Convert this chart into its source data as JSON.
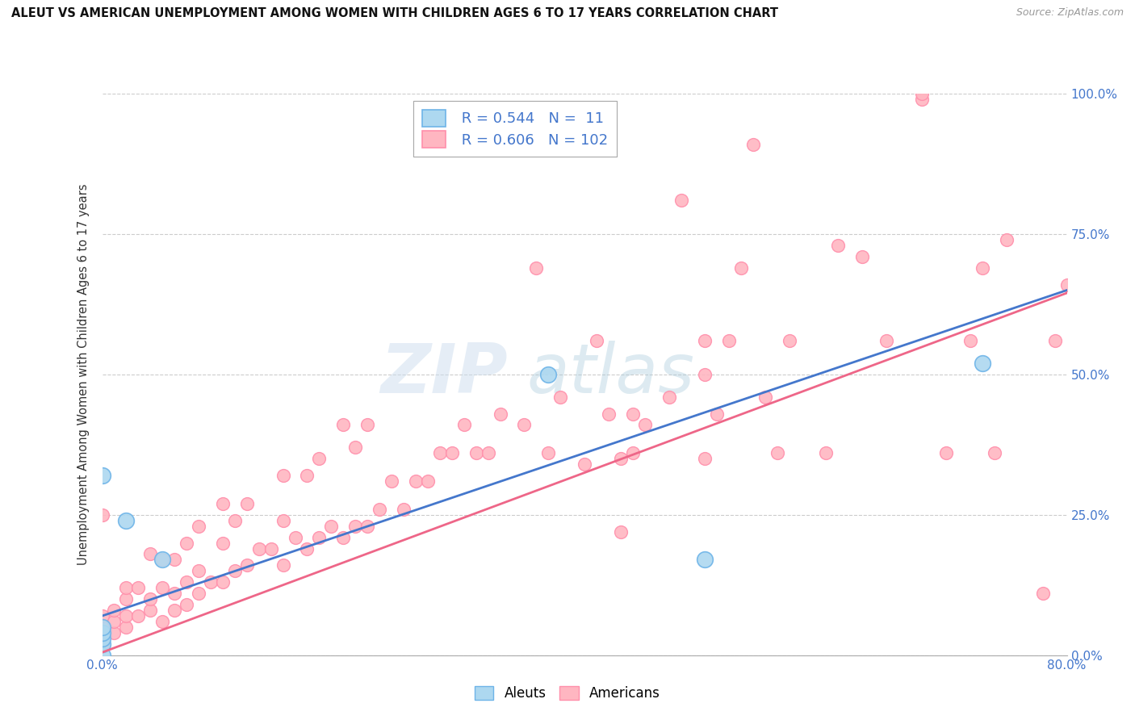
{
  "title": "ALEUT VS AMERICAN UNEMPLOYMENT AMONG WOMEN WITH CHILDREN AGES 6 TO 17 YEARS CORRELATION CHART",
  "source": "Source: ZipAtlas.com",
  "ylabel": "Unemployment Among Women with Children Ages 6 to 17 years",
  "xlim": [
    0,
    0.8
  ],
  "ylim": [
    0,
    1.0
  ],
  "xticks": [
    0.0,
    0.1,
    0.2,
    0.3,
    0.4,
    0.5,
    0.6,
    0.7,
    0.8
  ],
  "xticklabels": [
    "0.0%",
    "",
    "",
    "",
    "",
    "",
    "",
    "",
    "80.0%"
  ],
  "yticks": [
    0.0,
    0.25,
    0.5,
    0.75,
    1.0
  ],
  "yticklabels": [
    "0.0%",
    "25.0%",
    "50.0%",
    "75.0%",
    "100.0%"
  ],
  "aleut_fill_color": "#ADD8F0",
  "aleut_edge_color": "#6EB4E8",
  "american_fill_color": "#FFB6C1",
  "american_edge_color": "#FF8FAB",
  "aleut_line_color": "#4477CC",
  "american_line_color": "#EE6688",
  "aleut_R": 0.544,
  "aleut_N": 11,
  "american_R": 0.606,
  "american_N": 102,
  "watermark_zip": "ZIP",
  "watermark_atlas": "atlas",
  "background_color": "#FFFFFF",
  "grid_color": "#CCCCCC",
  "legend_label_aleuts": "Aleuts",
  "legend_label_americans": "Americans",
  "tick_color": "#4477CC",
  "aleut_line_y0": 0.07,
  "aleut_line_y1": 0.65,
  "american_line_y0": 0.005,
  "american_line_y1": 0.645,
  "aleuts_x": [
    0.0,
    0.0,
    0.0,
    0.0,
    0.0,
    0.0,
    0.02,
    0.05,
    0.37,
    0.5,
    0.73
  ],
  "aleuts_y": [
    0.0,
    0.02,
    0.03,
    0.04,
    0.05,
    0.32,
    0.24,
    0.17,
    0.5,
    0.17,
    0.52
  ],
  "americans_x": [
    0.0,
    0.0,
    0.0,
    0.0,
    0.01,
    0.01,
    0.01,
    0.02,
    0.02,
    0.02,
    0.02,
    0.03,
    0.03,
    0.04,
    0.04,
    0.04,
    0.05,
    0.05,
    0.05,
    0.06,
    0.06,
    0.06,
    0.07,
    0.07,
    0.07,
    0.08,
    0.08,
    0.08,
    0.09,
    0.1,
    0.1,
    0.1,
    0.11,
    0.11,
    0.12,
    0.12,
    0.13,
    0.14,
    0.15,
    0.15,
    0.15,
    0.16,
    0.17,
    0.17,
    0.18,
    0.18,
    0.19,
    0.2,
    0.2,
    0.21,
    0.21,
    0.22,
    0.22,
    0.23,
    0.24,
    0.25,
    0.26,
    0.27,
    0.28,
    0.29,
    0.3,
    0.31,
    0.32,
    0.33,
    0.35,
    0.36,
    0.37,
    0.38,
    0.4,
    0.41,
    0.42,
    0.44,
    0.44,
    0.45,
    0.47,
    0.48,
    0.5,
    0.51,
    0.52,
    0.53,
    0.54,
    0.55,
    0.56,
    0.57,
    0.6,
    0.61,
    0.63,
    0.65,
    0.68,
    0.68,
    0.7,
    0.72,
    0.73,
    0.74,
    0.75,
    0.78,
    0.79,
    0.8,
    0.5,
    0.5,
    0.43,
    0.43
  ],
  "americans_y": [
    0.02,
    0.05,
    0.07,
    0.25,
    0.04,
    0.06,
    0.08,
    0.05,
    0.07,
    0.1,
    0.12,
    0.07,
    0.12,
    0.08,
    0.1,
    0.18,
    0.06,
    0.12,
    0.17,
    0.08,
    0.11,
    0.17,
    0.09,
    0.13,
    0.2,
    0.11,
    0.15,
    0.23,
    0.13,
    0.13,
    0.2,
    0.27,
    0.15,
    0.24,
    0.16,
    0.27,
    0.19,
    0.19,
    0.16,
    0.24,
    0.32,
    0.21,
    0.19,
    0.32,
    0.21,
    0.35,
    0.23,
    0.21,
    0.41,
    0.23,
    0.37,
    0.23,
    0.41,
    0.26,
    0.31,
    0.26,
    0.31,
    0.31,
    0.36,
    0.36,
    0.41,
    0.36,
    0.36,
    0.43,
    0.41,
    0.69,
    0.36,
    0.46,
    0.34,
    0.56,
    0.43,
    0.36,
    0.43,
    0.41,
    0.46,
    0.81,
    0.56,
    0.43,
    0.56,
    0.69,
    0.91,
    0.46,
    0.36,
    0.56,
    0.36,
    0.73,
    0.71,
    0.56,
    0.99,
    1.0,
    0.36,
    0.56,
    0.69,
    0.36,
    0.74,
    0.11,
    0.56,
    0.66,
    0.35,
    0.5,
    0.22,
    0.35
  ]
}
